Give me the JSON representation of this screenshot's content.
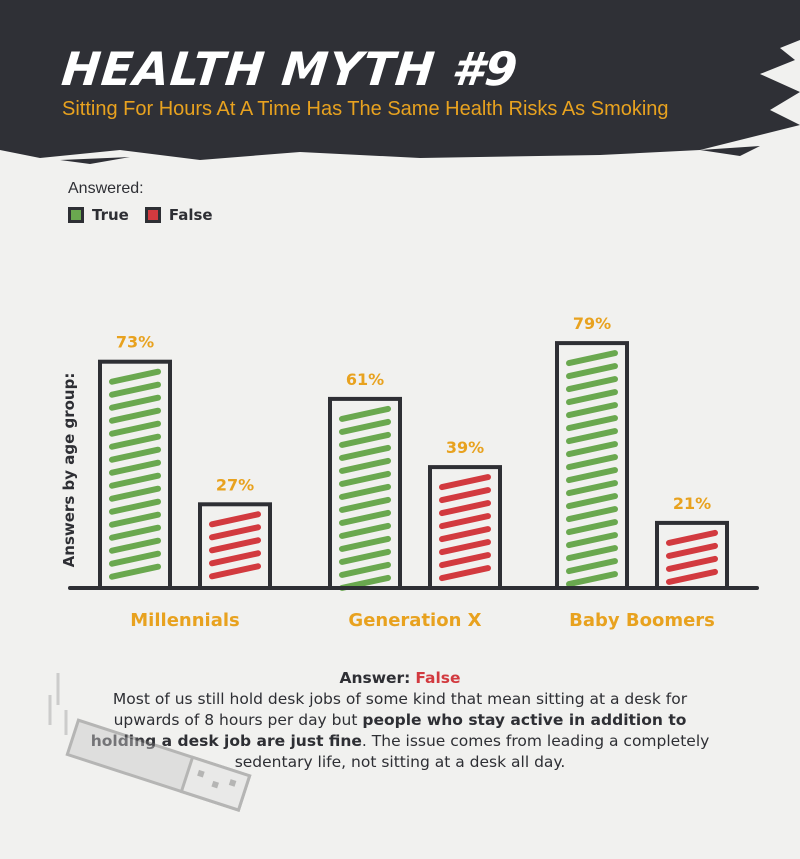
{
  "header": {
    "title": "HEALTH MYTH #9",
    "subtitle": "Sitting For Hours At A Time Has The Same Health Risks As Smoking"
  },
  "legend": {
    "title": "Answered:",
    "items": [
      {
        "label": "True",
        "color": "#6aa84f"
      },
      {
        "label": "False",
        "color": "#d23a3f"
      }
    ]
  },
  "colors": {
    "true": "#6aa84f",
    "false": "#d23a3f",
    "outline": "#2e2f34",
    "accent": "#e8a21f",
    "banner": "#2f3036"
  },
  "chart_data": {
    "type": "bar",
    "ylabel": "Answers by age group:",
    "categories": [
      "Millennials",
      "Generation X",
      "Baby Boomers"
    ],
    "series": [
      {
        "name": "True",
        "values": [
          73,
          61,
          79
        ]
      },
      {
        "name": "False",
        "values": [
          27,
          39,
          21
        ]
      }
    ],
    "value_labels": {
      "True": [
        "73%",
        "61%",
        "79%"
      ],
      "False": [
        "27%",
        "39%",
        "21%"
      ]
    },
    "ylim": [
      0,
      100
    ]
  },
  "answer": {
    "heading": "Answer:",
    "value": "False",
    "text_1": "Most of us still hold desk jobs of some kind that mean sitting at a desk for upwards of 8 hours per day but ",
    "text_bold": "people who stay active in addition to holding a desk job are just fine",
    "text_2": ". The issue comes from leading a completely sedentary life, not sitting at a desk all day."
  }
}
